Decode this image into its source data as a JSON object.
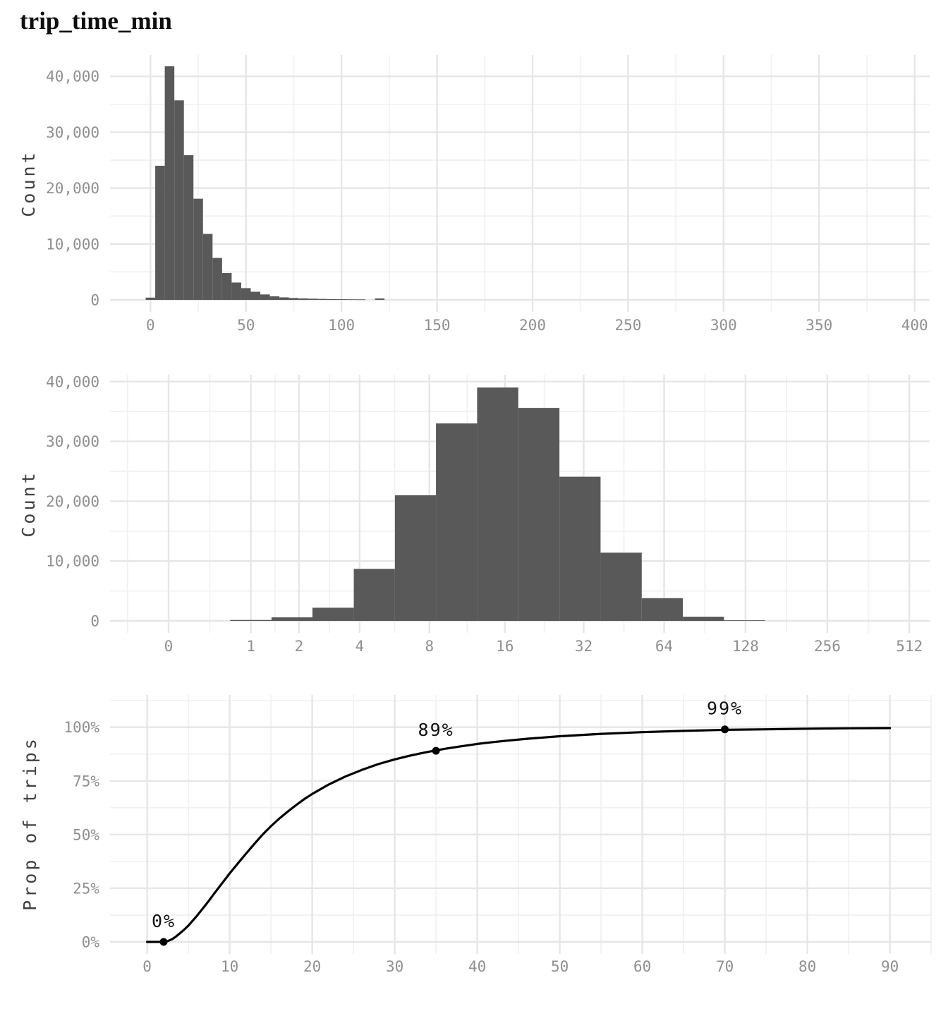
{
  "title": "trip_time_min",
  "colors": {
    "bar": "#595959",
    "grid_major": "#e6e6e6",
    "grid_minor": "#f1f1f1",
    "tick_label": "#8f8f8f",
    "axis_title": "#404040",
    "title": "#0e0e0e",
    "curve": "#000000",
    "marker": "#000000",
    "marker_label": "#111111",
    "background": "#ffffff"
  },
  "chart_data": [
    {
      "type": "bar",
      "name": "trip-time-histogram-linear",
      "title": "",
      "xlabel": "",
      "ylabel": "Count",
      "x_scale": "linear",
      "xlim": [
        -21,
        408
      ],
      "ylim": [
        0,
        43800
      ],
      "grid": true,
      "x_ticks": [
        0,
        50,
        100,
        150,
        200,
        250,
        300,
        350,
        400
      ],
      "x_tick_labels": [
        "0",
        "50",
        "100",
        "150",
        "200",
        "250",
        "300",
        "350",
        "400"
      ],
      "y_ticks": [
        0,
        10000,
        20000,
        30000,
        40000
      ],
      "y_tick_labels": [
        "0",
        "10,000",
        "20,000",
        "30,000",
        "40,000"
      ],
      "bin_width": 5,
      "bin_centers": [
        0,
        5,
        10,
        15,
        20,
        25,
        30,
        35,
        40,
        45,
        50,
        55,
        60,
        65,
        70,
        75,
        80,
        85,
        90,
        95,
        100,
        105,
        110,
        115,
        120
      ],
      "counts": [
        400,
        24000,
        41800,
        35700,
        25900,
        18100,
        11800,
        7500,
        4800,
        3100,
        2100,
        1450,
        970,
        630,
        450,
        340,
        260,
        210,
        170,
        140,
        120,
        100,
        90,
        0,
        250
      ]
    },
    {
      "type": "bar",
      "name": "trip-time-histogram-log1p",
      "title": "",
      "xlabel": "",
      "ylabel": "Count",
      "x_scale": "log1p",
      "xlim": [
        0,
        512
      ],
      "ylim": [
        0,
        41000
      ],
      "grid": true,
      "x_ticks": [
        0,
        1,
        2,
        4,
        8,
        16,
        32,
        64,
        128,
        256,
        512
      ],
      "x_tick_labels": [
        "0",
        "1",
        "2",
        "4",
        "8",
        "16",
        "32",
        "64",
        "128",
        "256",
        "512"
      ],
      "y_ticks": [
        0,
        10000,
        20000,
        30000,
        40000
      ],
      "y_tick_labels": [
        "0",
        "10,000",
        "20,000",
        "30,000",
        "40,000"
      ],
      "bin_edges": [
        0.68,
        1.38,
        2.36,
        3.76,
        5.73,
        8.51,
        12.45,
        18.03,
        25.91,
        37.05,
        52.82,
        75.11,
        106.63,
        151.22
      ],
      "counts": [
        150,
        600,
        2200,
        8700,
        21000,
        33000,
        39000,
        35600,
        24100,
        11400,
        3800,
        700,
        100
      ]
    },
    {
      "type": "line",
      "name": "trip-time-cdf",
      "title": "",
      "xlabel": "",
      "ylabel": "Prop of trips",
      "x_scale": "linear",
      "xlim": [
        -4.5,
        95
      ],
      "ylim": [
        -4.5,
        115
      ],
      "grid": true,
      "x_ticks": [
        0,
        10,
        20,
        30,
        40,
        50,
        60,
        70,
        80,
        90
      ],
      "x_tick_labels": [
        "0",
        "10",
        "20",
        "30",
        "40",
        "50",
        "60",
        "70",
        "80",
        "90"
      ],
      "y_ticks": [
        0,
        25,
        50,
        75,
        100
      ],
      "y_tick_labels": [
        "0%",
        "25%",
        "50%",
        "75%",
        "100%"
      ],
      "points": [
        [
          0,
          0
        ],
        [
          0.5,
          0
        ],
        [
          1,
          0
        ],
        [
          1.5,
          0
        ],
        [
          2,
          0.1
        ],
        [
          2.5,
          0.4
        ],
        [
          3,
          1.2
        ],
        [
          3.5,
          2.5
        ],
        [
          4,
          4.1
        ],
        [
          4.5,
          5.8
        ],
        [
          5,
          7.6
        ],
        [
          5.5,
          9.8
        ],
        [
          6,
          12.0
        ],
        [
          6.5,
          14.4
        ],
        [
          7,
          16.8
        ],
        [
          7.5,
          19.3
        ],
        [
          8,
          21.9
        ],
        [
          8.5,
          24.4
        ],
        [
          9,
          26.9
        ],
        [
          9.5,
          29.4
        ],
        [
          10,
          31.9
        ],
        [
          11,
          36.6
        ],
        [
          12,
          41.2
        ],
        [
          13,
          45.7
        ],
        [
          14,
          50.0
        ],
        [
          15,
          53.9
        ],
        [
          16,
          57.4
        ],
        [
          17,
          60.6
        ],
        [
          18,
          63.6
        ],
        [
          19,
          66.4
        ],
        [
          20,
          68.9
        ],
        [
          22,
          73.3
        ],
        [
          24,
          77.0
        ],
        [
          26,
          80.1
        ],
        [
          28,
          82.8
        ],
        [
          30,
          85.0
        ],
        [
          32,
          86.9
        ],
        [
          34,
          88.5
        ],
        [
          35,
          89.2
        ],
        [
          36,
          89.9
        ],
        [
          38,
          91.1
        ],
        [
          40,
          92.2
        ],
        [
          42,
          93.1
        ],
        [
          44,
          93.9
        ],
        [
          46,
          94.6
        ],
        [
          48,
          95.2
        ],
        [
          50,
          95.8
        ],
        [
          55,
          96.9
        ],
        [
          60,
          97.7
        ],
        [
          65,
          98.3
        ],
        [
          70,
          98.8
        ],
        [
          75,
          99.0
        ],
        [
          80,
          99.3
        ],
        [
          85,
          99.5
        ],
        [
          90,
          99.6
        ]
      ],
      "markers": [
        {
          "x": 2,
          "y": 0,
          "label": "0%"
        },
        {
          "x": 35,
          "y": 89,
          "label": "89%"
        },
        {
          "x": 70,
          "y": 99,
          "label": "99%"
        }
      ]
    }
  ]
}
